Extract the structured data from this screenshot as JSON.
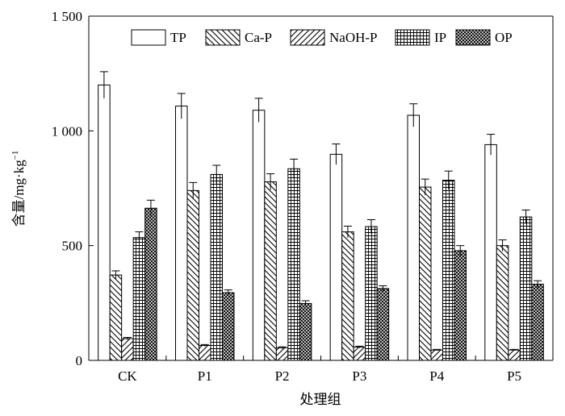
{
  "chart_data": {
    "type": "bar",
    "title": "",
    "xlabel": "处理组",
    "ylabel": "含量/mg·kg",
    "ylabel_sup": "−1",
    "ylim": [
      0,
      1500
    ],
    "yticks": [
      0,
      500,
      1000,
      1500
    ],
    "ytick_labels": [
      "0",
      "500",
      "1 000",
      "1 500"
    ],
    "grid": false,
    "legend_position": "top-right",
    "categories": [
      "CK",
      "P1",
      "P2",
      "P3",
      "P4",
      "P5"
    ],
    "series": [
      {
        "name": "TP",
        "pattern": "none",
        "values": [
          1200,
          1108,
          1090,
          898,
          1068,
          940
        ],
        "errors": [
          58,
          55,
          52,
          45,
          50,
          45
        ]
      },
      {
        "name": "Ca-P",
        "pattern": "backslash",
        "values": [
          372,
          740,
          778,
          560,
          755,
          500
        ],
        "errors": [
          18,
          35,
          35,
          25,
          35,
          25
        ]
      },
      {
        "name": "NaOH-P",
        "pattern": "slash",
        "values": [
          95,
          65,
          55,
          58,
          45,
          45
        ],
        "errors": [
          5,
          4,
          4,
          4,
          3,
          3
        ]
      },
      {
        "name": "IP",
        "pattern": "grid",
        "values": [
          535,
          810,
          835,
          583,
          785,
          625
        ],
        "errors": [
          25,
          40,
          42,
          30,
          40,
          30
        ]
      },
      {
        "name": "OP",
        "pattern": "crosshatch",
        "values": [
          663,
          295,
          248,
          313,
          478,
          332
        ],
        "errors": [
          35,
          12,
          12,
          12,
          22,
          15
        ]
      }
    ]
  }
}
